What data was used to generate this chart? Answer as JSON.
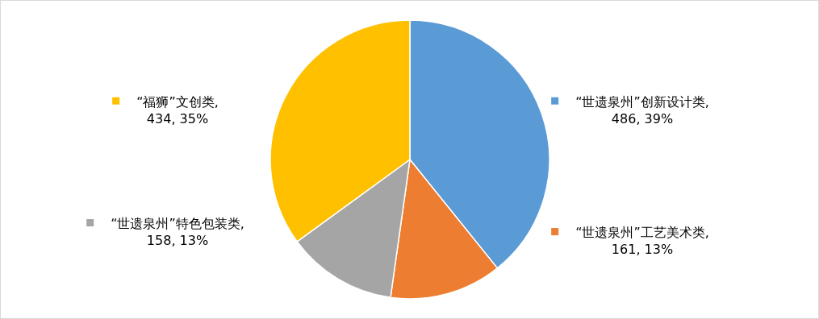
{
  "chart_data": {
    "type": "pie",
    "categories": [
      "“世遗泉州”创新设计类",
      "“世遗泉州”工艺美术类",
      "“世遗泉州”特色包装类",
      "“福狮”文创类"
    ],
    "values": [
      486,
      161,
      158,
      434
    ],
    "colors": [
      "#5b9bd5",
      "#ed7d31",
      "#a5a5a5",
      "#ffc000"
    ],
    "legend": "left",
    "value_labels": [
      ",\n486, 39%",
      ",\n161, 13%",
      ",\n158, 13%",
      ",\n434, 35%"
    ]
  }
}
